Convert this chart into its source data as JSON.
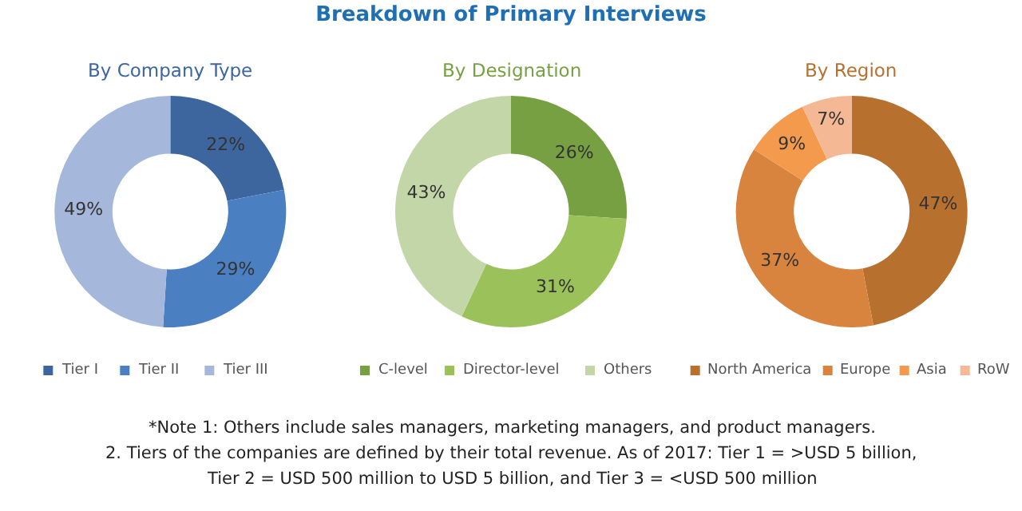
{
  "chart_data": [
    {
      "type": "other",
      "title": "Breakdown of Primary Interviews",
      "annotations": [
        "*Note 1: Others include sales managers, marketing managers, and product managers.",
        "2. Tiers of the companies are defined by their total revenue. As of 2017: Tier 1 = >USD 5 billion, Tier 2 = USD 500 million to USD 5 billion, and Tier 3 = <USD 500 million"
      ]
    },
    {
      "type": "donut",
      "title": "By Company Type",
      "categories": [
        "Tier I",
        "Tier II",
        "Tier III"
      ],
      "values": [
        22,
        29,
        49
      ],
      "value_labels": [
        "22%",
        "29%",
        "49%"
      ],
      "colors": [
        "#3d669e",
        "#4a7fc1",
        "#a5b7da"
      ],
      "legend": "bottom"
    },
    {
      "type": "donut",
      "title": "By Designation",
      "categories": [
        "C-level",
        "Director-level",
        "Others"
      ],
      "values": [
        26,
        31,
        43
      ],
      "value_labels": [
        "26%",
        "31%",
        "43%"
      ],
      "colors": [
        "#77a043",
        "#9bc25a",
        "#c3d6a8"
      ],
      "legend": "bottom"
    },
    {
      "type": "donut",
      "title": "By Region",
      "categories": [
        "North America",
        "Europe",
        "Asia",
        "RoW"
      ],
      "values": [
        47,
        37,
        9,
        7
      ],
      "value_labels": [
        "47%",
        "37%",
        "9%",
        "7%"
      ],
      "colors": [
        "#b8702f",
        "#d9843e",
        "#f39a4c",
        "#f5b894"
      ],
      "legend": "bottom"
    }
  ]
}
